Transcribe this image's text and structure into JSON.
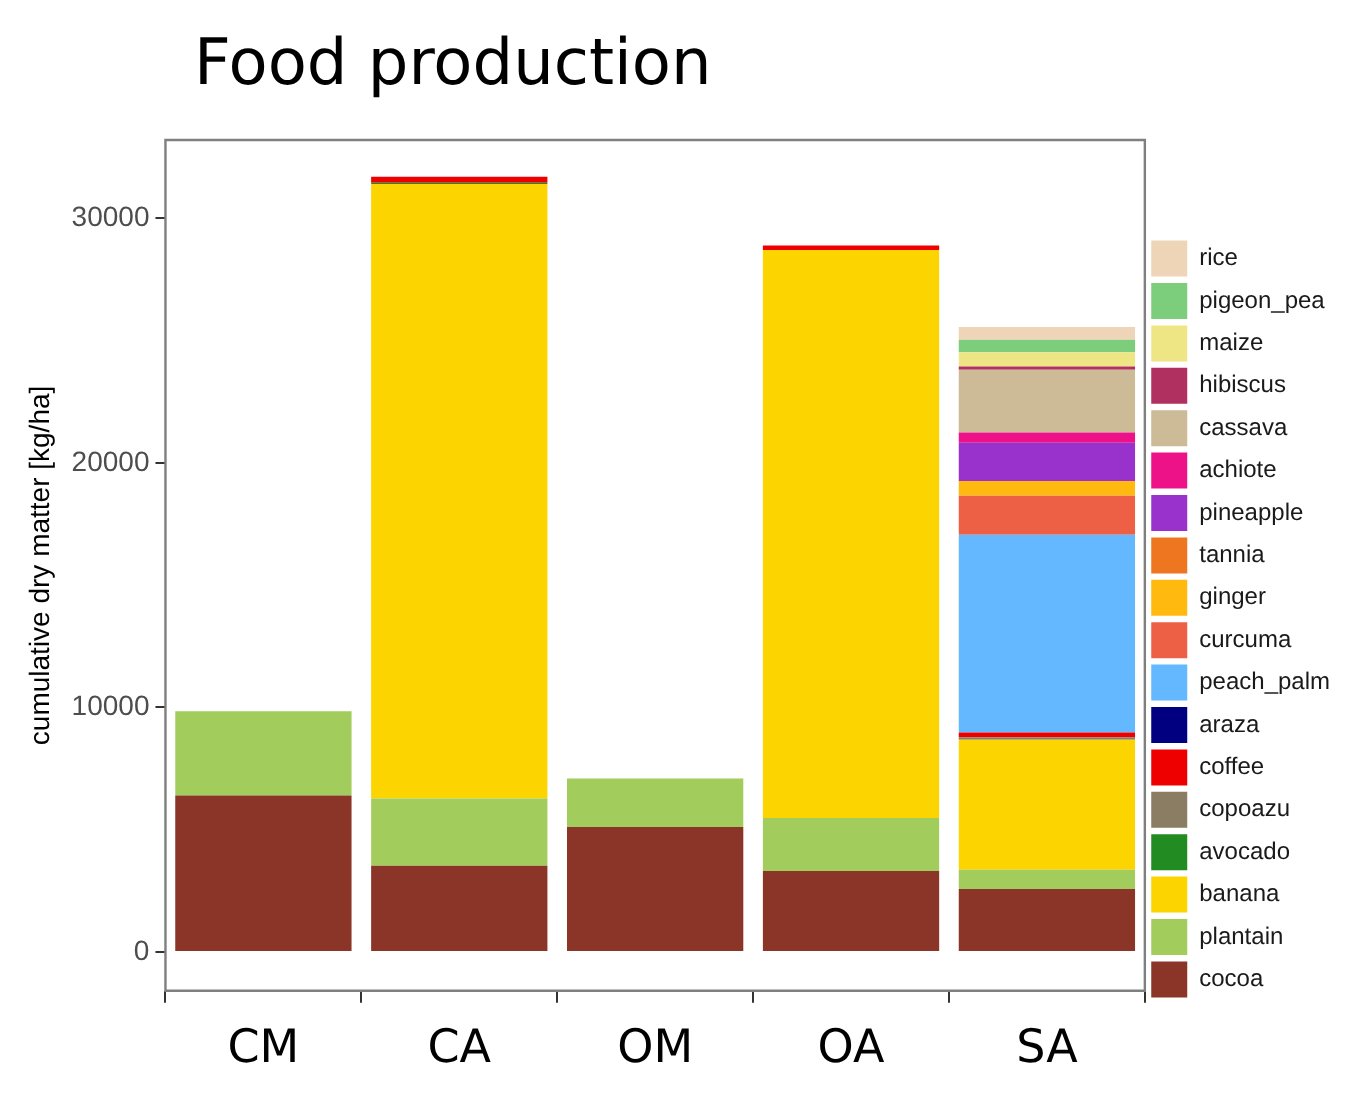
{
  "chart_data": {
    "type": "bar",
    "title": "Food production",
    "ylabel": "cumulative dry matter [kg/ha]",
    "stacked": true,
    "legend": "right",
    "grid": false,
    "categories": [
      "CM",
      "CA",
      "OM",
      "OA",
      "SA"
    ],
    "ylim": [
      -1590,
      33200
    ],
    "yticks": [
      0,
      10000,
      20000,
      30000
    ],
    "series": [
      {
        "name": "cocoa",
        "color": "#8b3428",
        "values": [
          6400,
          3520,
          5110,
          3310,
          2570
        ]
      },
      {
        "name": "plantain",
        "color": "#a2cc5c",
        "values": [
          3440,
          2750,
          1980,
          2170,
          790
        ]
      },
      {
        "name": "banana",
        "color": "#fcd500",
        "values": [
          null,
          25130,
          null,
          23220,
          5320
        ]
      },
      {
        "name": "avocado",
        "color": "#228b22",
        "values": [
          null,
          50,
          null,
          null,
          null
        ]
      },
      {
        "name": "copoazu",
        "color": "#8b7d64",
        "values": [
          null,
          null,
          null,
          null,
          100
        ]
      },
      {
        "name": "coffee",
        "color": "#ee0000",
        "values": [
          null,
          250,
          null,
          190,
          190
        ]
      },
      {
        "name": "araza",
        "color": "#000080",
        "values": [
          null,
          null,
          null,
          null,
          null
        ]
      },
      {
        "name": "peach_palm",
        "color": "#63b8ff",
        "values": [
          null,
          null,
          null,
          null,
          8090
        ]
      },
      {
        "name": "curcuma",
        "color": "#ee6045",
        "values": [
          null,
          null,
          null,
          null,
          1590
        ]
      },
      {
        "name": "ginger",
        "color": "#ffb90f",
        "values": [
          null,
          null,
          null,
          null,
          610
        ]
      },
      {
        "name": "tannia",
        "color": "#ee7621",
        "values": [
          null,
          null,
          null,
          null,
          null
        ]
      },
      {
        "name": "pineapple",
        "color": "#9932cc",
        "values": [
          null,
          null,
          null,
          null,
          1560
        ]
      },
      {
        "name": "achiote",
        "color": "#ee1289",
        "values": [
          null,
          null,
          null,
          null,
          420
        ]
      },
      {
        "name": "cassava",
        "color": "#cdba96",
        "values": [
          null,
          null,
          null,
          null,
          2570
        ]
      },
      {
        "name": "hibiscus",
        "color": "#b03060",
        "values": [
          null,
          null,
          null,
          null,
          130
        ]
      },
      {
        "name": "maize",
        "color": "#eee685",
        "values": [
          null,
          null,
          null,
          null,
          580
        ]
      },
      {
        "name": "pigeon_pea",
        "color": "#7ccd7c",
        "values": [
          null,
          null,
          null,
          null,
          510
        ]
      },
      {
        "name": "rice",
        "color": "#eed5b7",
        "values": [
          null,
          null,
          null,
          null,
          520
        ]
      }
    ]
  }
}
